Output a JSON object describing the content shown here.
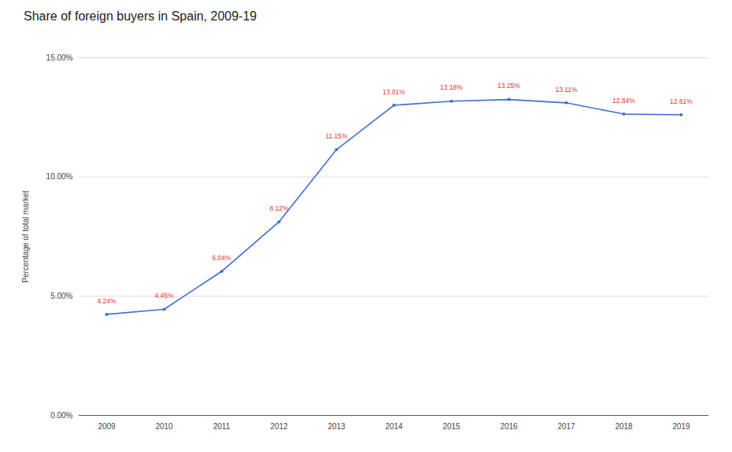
{
  "chart_data": {
    "type": "line",
    "title": "Share of foreign buyers in Spain, 2009-19",
    "y_label": "Percentage of total market",
    "categories": [
      "2009",
      "2010",
      "2011",
      "2012",
      "2013",
      "2014",
      "2015",
      "2016",
      "2017",
      "2018",
      "2019"
    ],
    "values": [
      4.24,
      4.45,
      6.04,
      8.12,
      11.15,
      13.01,
      13.18,
      13.25,
      13.11,
      12.64,
      12.61
    ],
    "value_labels": [
      "4.24%",
      "4.45%",
      "6.04%",
      "8.12%",
      "11.15%",
      "13.01%",
      "13.18%",
      "13.25%",
      "13.11%",
      "12.64%",
      "12.61%"
    ],
    "color": "#3f6fd1",
    "ylim": [
      0,
      15
    ],
    "yticks": [
      {
        "value": 0,
        "label": "0.00%"
      },
      {
        "value": 5,
        "label": "5.00%"
      },
      {
        "value": 10,
        "label": "10.00%"
      },
      {
        "value": 15,
        "label": "15.00%"
      }
    ],
    "grid": true,
    "data_labels": true,
    "marker": "circle"
  }
}
